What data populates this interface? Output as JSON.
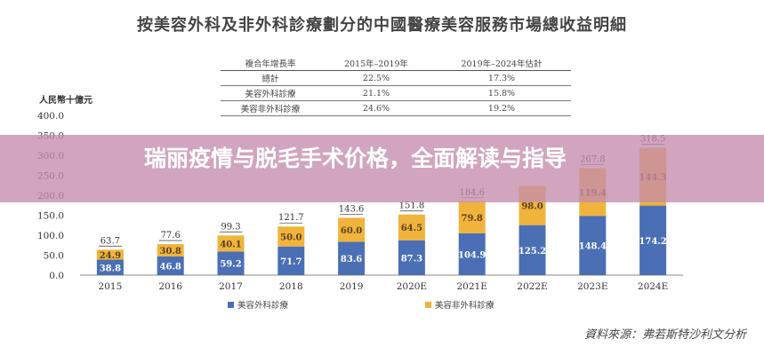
{
  "chart_data": {
    "type": "bar",
    "stacked": true,
    "title": "按美容外科及非外科診療劃分的中國醫療美容服務市場總收益明細",
    "ylabel": "人民幣十億元",
    "ylim": [
      0,
      400
    ],
    "yticks": [
      "0.0",
      "50.0",
      "100.0",
      "150.0",
      "200.0",
      "250.0",
      "300.0",
      "350.0",
      "400.0"
    ],
    "categories": [
      "2015",
      "2016",
      "2017",
      "2018",
      "2019",
      "2020E",
      "2021E",
      "2022E",
      "2023E",
      "2024E"
    ],
    "series": [
      {
        "name": "美容外科診療",
        "color": "#4a6fb5",
        "values": [
          38.8,
          46.8,
          59.2,
          71.7,
          83.6,
          87.3,
          104.9,
          125.2,
          148.4,
          174.2
        ]
      },
      {
        "name": "美容非外科診療",
        "color": "#f0b43c",
        "values": [
          24.9,
          30.8,
          40.1,
          50.0,
          60.0,
          64.5,
          79.8,
          98.0,
          119.4,
          144.3
        ]
      }
    ],
    "totals": [
      "63.7",
      "77.6",
      "99.3",
      "121.7",
      "143.6",
      "151.8",
      "184.6",
      "",
      "267.8",
      "318.5"
    ],
    "legend_position": "bottom",
    "grid": false,
    "cagr_table": {
      "headers": [
        "複合年增長率",
        "2015年–2019年",
        "2019年–2024年估計"
      ],
      "rows": [
        [
          "總計",
          "22.5%",
          "17.3%"
        ],
        [
          "美容外科診療",
          "21.1%",
          "15.8%"
        ],
        [
          "美容非外科診療",
          "24.6%",
          "19.2%"
        ]
      ]
    },
    "source": "資料來源：弗若斯特沙利文分析"
  },
  "overlay_banner": {
    "text": "瑞丽疫情与脱毛手术价格，全面解读与指导",
    "color": "#c48cac"
  }
}
